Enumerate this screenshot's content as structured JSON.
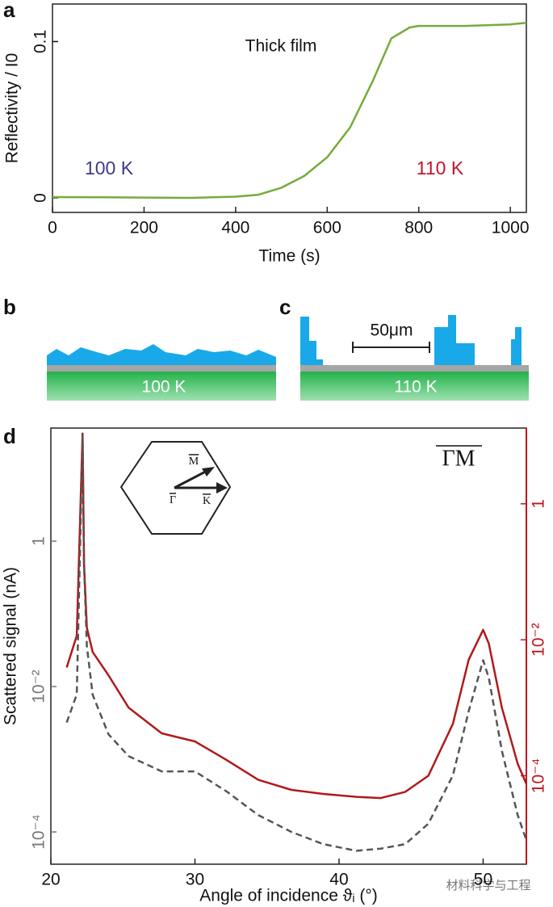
{
  "chart_data": [
    {
      "type": "line",
      "panel_label": "a",
      "xlabel": "Time (s)",
      "ylabel": "Reflectivity / I0",
      "annotations": [
        "Thick film",
        "100 K",
        "110 K"
      ],
      "x": [
        0,
        100,
        200,
        300,
        400,
        450,
        500,
        550,
        600,
        650,
        700,
        740,
        780,
        800,
        900,
        1000,
        1035
      ],
      "series": [
        {
          "color": "#77ab3c",
          "values": [
            0.0005,
            0.0004,
            0.0002,
            0,
            0.0008,
            0.002,
            0.0065,
            0.014,
            0.026,
            0.045,
            0.075,
            0.102,
            0.109,
            0.11,
            0.11,
            0.111,
            0.112
          ]
        }
      ],
      "xlim": [
        0,
        1035
      ],
      "xticks": [
        0,
        200,
        400,
        600,
        800,
        1000
      ],
      "ylim": [
        -0.0093,
        0.124
      ],
      "yticks": [
        0,
        0.1
      ]
    },
    {
      "type": "line",
      "panel_label": "d",
      "title": "ΓM",
      "xlabel": "Angle of incidence ϑᵢ (°)",
      "ylabel": "Scattered signal (nA)",
      "inset_labels": [
        "M",
        "Γ",
        "K"
      ],
      "y_scale": "log",
      "y2_scale": "log",
      "y2color": "#c0141e",
      "ycolor": "#777777",
      "x": [
        21.1,
        21.8,
        22.1,
        22.2,
        22.3,
        22.5,
        22.9,
        24,
        25.4,
        27.7,
        30,
        32.2,
        34.4,
        36.7,
        38.9,
        41.2,
        42.9,
        44.6,
        46.2,
        47.9,
        49,
        50,
        50.4,
        51.3,
        52.4,
        53
      ],
      "series": [
        {
          "color": "#b01a1a",
          "axis": "y2",
          "style": "solid",
          "values": [
            0.0039,
            0.0115,
            2.0,
            10.8,
            0.13,
            0.015,
            0.0066,
            0.003,
            0.001,
            0.00042,
            0.00032,
            0.00017,
            8.7e-05,
            6.2e-05,
            5.4e-05,
            4.9e-05,
            4.7e-05,
            5.8e-05,
            0.0001,
            0.00058,
            0.0051,
            0.014,
            0.0087,
            0.001,
            0.00015,
            7.6e-05
          ]
        },
        {
          "color": "#555555",
          "style": "dashed",
          "values": [
            0.0032,
            0.0078,
            3.6,
            28,
            0.46,
            0.036,
            0.0077,
            0.0022,
            0.0011,
            0.00068,
            0.00068,
            0.00036,
            0.00017,
            0.0001,
            6.8e-05,
            5.5e-05,
            5.9e-05,
            6.8e-05,
            0.00013,
            0.0006,
            0.0046,
            0.023,
            0.013,
            0.0013,
            0.00017,
            7.7e-05
          ]
        }
      ],
      "xlim": [
        20,
        53
      ],
      "xticks": [
        20,
        30,
        40,
        50
      ],
      "ylim": [
        3.6e-05,
        36
      ],
      "yticks": [
        1,
        {
          "value": 0.01,
          "label": "10⁻²"
        },
        {
          "value": 0.0001,
          "label": "10⁻⁴"
        }
      ],
      "y2lim": [
        5e-06,
        13
      ],
      "y2ticks": [
        1,
        {
          "value": 0.01,
          "label": "10⁻²"
        },
        {
          "value": 0.0001,
          "label": "10⁻⁴"
        }
      ]
    }
  ],
  "diagrams": [
    {
      "label": "b",
      "temperature": "100 K"
    },
    {
      "label": "c",
      "temperature": "110 K",
      "scale_bar": "50μm"
    }
  ],
  "watermark": "材料科学与工程"
}
